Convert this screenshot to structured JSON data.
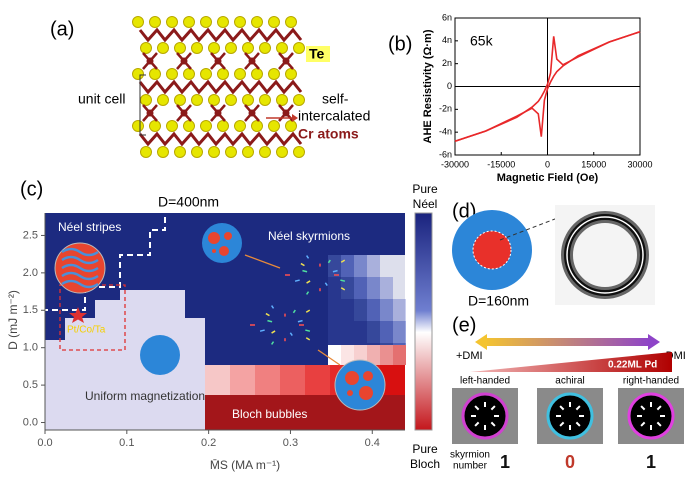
{
  "panels": {
    "a": {
      "label": "(a)",
      "te": "Te",
      "unit_cell": "unit cell",
      "self": "self-",
      "intercalated": "intercalated",
      "cr": "Cr atoms"
    },
    "b": {
      "label": "(b)"
    },
    "c": {
      "label": "(c)",
      "stripes": "Néel stripes",
      "skyrmions": "Néel skyrmions",
      "uniform": "Uniform magnetization",
      "bloch": "Bloch bubbles",
      "size": "D=400nm",
      "stack": "Pt/Co/Ta",
      "top": [
        "Pure",
        "Néel"
      ],
      "bottom": [
        "Pure",
        "Bloch"
      ]
    },
    "d": {
      "label": "(d)",
      "size": "D=160nm"
    },
    "e": {
      "label": "(e)",
      "plus": "+DMI",
      "minus": "-DMI",
      "pd": "0.22ML Pd",
      "kinds": [
        "left-handed",
        "achiral",
        "right-handed"
      ],
      "number_label": [
        "skyrmion",
        "number"
      ],
      "numbers": [
        1,
        0,
        1
      ]
    }
  },
  "chart_data": [
    {
      "type": "line",
      "annotation": "65k",
      "xlabel": "Magnetic Field (Oe)",
      "ylabel": "AHE Resistivity (Ω·m)",
      "x": [
        -30000,
        -20000,
        -10000,
        -5000,
        -3000,
        -2000,
        -1000,
        0,
        1000,
        2000,
        3000,
        5000,
        10000,
        20000,
        30000
      ],
      "series": [
        {
          "color": "#e8282a",
          "values": [
            -4.8e-09,
            -3.9e-09,
            -2.6e-09,
            -1.9e-09,
            -2.4e-09,
            -4.4e-09,
            -1.2e-09,
            -2e-10,
            4e-10,
            9e-10,
            1.3e-09,
            1.8e-09,
            2.7e-09,
            3.9e-09,
            4.8e-09
          ]
        },
        {
          "color": "#e8282a",
          "values": [
            -4.8e-09,
            -3.9e-09,
            -2.7e-09,
            -1.8e-09,
            -1.3e-09,
            -9e-10,
            -4e-10,
            2e-10,
            1.2e-09,
            4.4e-09,
            2.4e-09,
            1.9e-09,
            2.6e-09,
            3.9e-09,
            4.8e-09
          ]
        }
      ],
      "xlim": [
        -30000,
        30000
      ],
      "xticks": [
        -30000,
        -15000,
        0,
        15000,
        30000
      ],
      "ylim": [
        -6e-09,
        6e-09
      ],
      "yticks": [
        {
          "value": -6e-09,
          "label": "-6n"
        },
        {
          "value": -4e-09,
          "label": "-4n"
        },
        {
          "value": -2e-09,
          "label": "-2n"
        },
        0,
        {
          "value": 2e-09,
          "label": "2n"
        },
        {
          "value": 4e-09,
          "label": "4n"
        },
        {
          "value": 6e-09,
          "label": "6n"
        }
      ]
    },
    {
      "type": "phase",
      "xlabel": "M̄S (MA m⁻¹)",
      "ylabel": "D (mJ m⁻²)",
      "xlim": [
        0,
        0.44
      ],
      "xticks": [
        {
          "value": 0,
          "label": "0.0"
        },
        0.1,
        0.2,
        0.3,
        0.4
      ],
      "ylim": [
        -0.1,
        2.8
      ],
      "yticks": [
        {
          "value": 0,
          "label": "0.0"
        },
        0.5,
        {
          "value": 1,
          "label": "1.0"
        },
        1.5,
        {
          "value": 2,
          "label": "2.0"
        },
        2.5
      ]
    }
  ]
}
